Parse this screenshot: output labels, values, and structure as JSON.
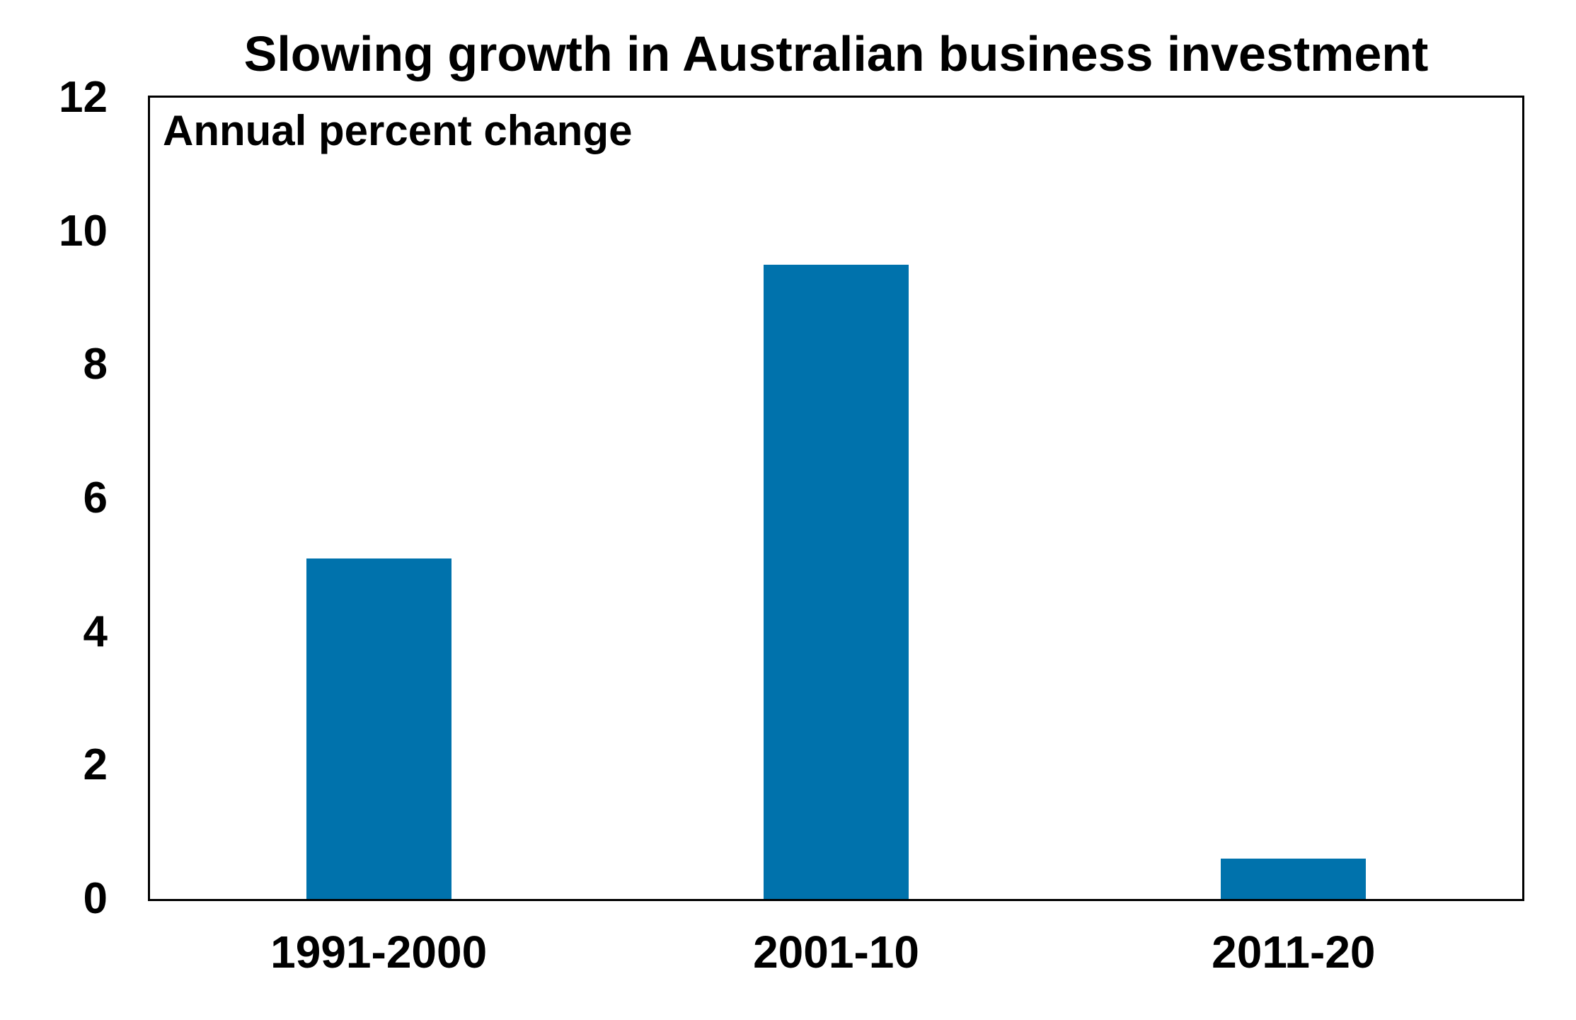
{
  "chart_data": {
    "type": "bar",
    "title": "Slowing growth in Australian business investment",
    "annotation": "Annual percent change",
    "categories": [
      "1991-2000",
      "2001-10",
      "2011-20"
    ],
    "values": [
      5.1,
      9.5,
      0.6
    ],
    "xlabel": "",
    "ylabel": "",
    "yticks": [
      0,
      2,
      4,
      6,
      8,
      10,
      12
    ],
    "ylim": [
      0,
      12
    ],
    "grid": false,
    "legend": false,
    "colors": {
      "bar": "#0072AC",
      "axis": "#000000",
      "text": "#000000",
      "background": "#ffffff"
    }
  }
}
